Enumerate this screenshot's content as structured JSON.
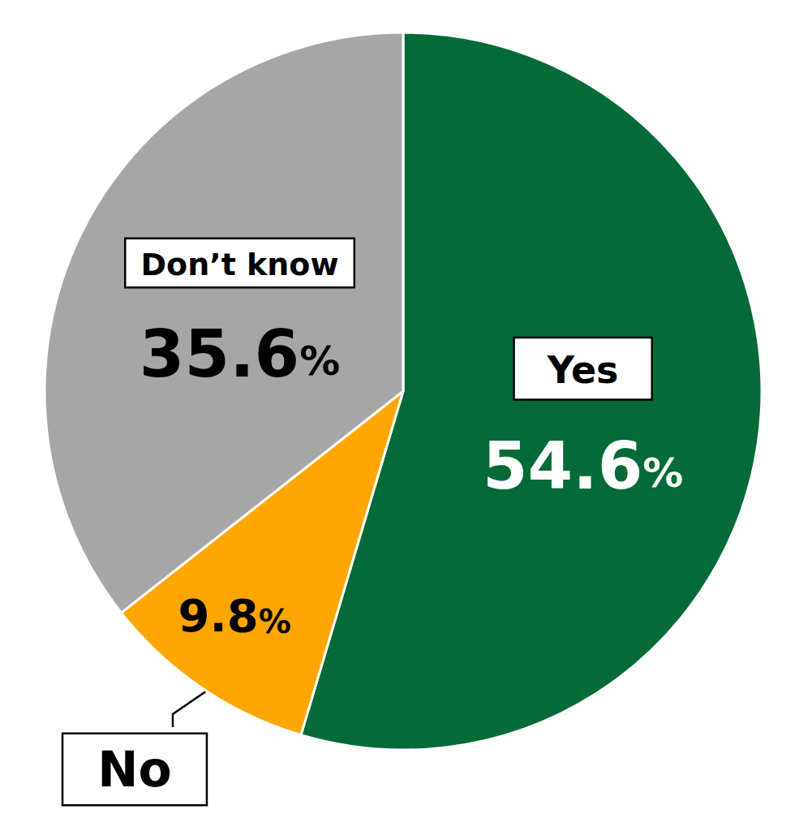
{
  "chart_data": {
    "type": "pie",
    "categories": [
      "Yes",
      "No",
      "Don’t know"
    ],
    "values": [
      54.6,
      9.8,
      35.6
    ],
    "value_labels": [
      "54.6%",
      "9.8%",
      "35.6%"
    ],
    "colors": [
      "#036a38",
      "#ffa600",
      "#a6a6a6"
    ],
    "data_labels": true
  }
}
